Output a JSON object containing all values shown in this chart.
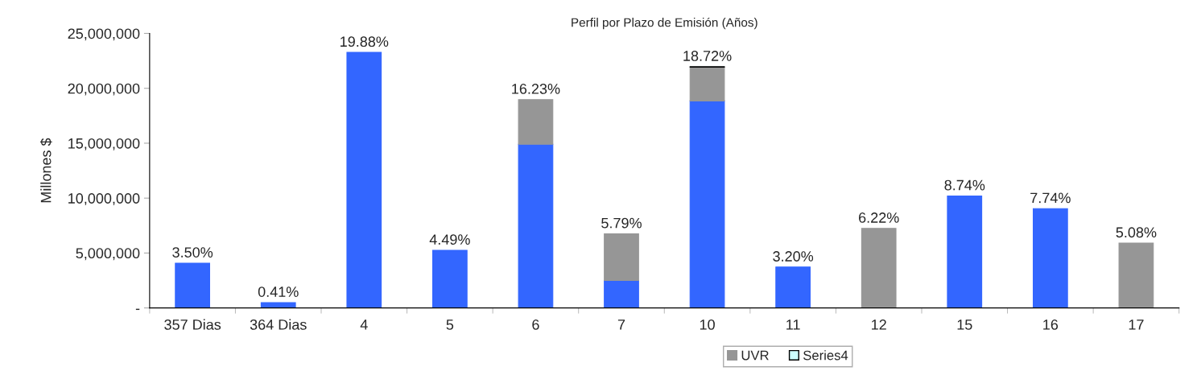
{
  "chart_data": {
    "type": "bar",
    "title": "Perfil por Plazo de Emisión (Años)",
    "ylabel": "Millones $",
    "categories": [
      "357 Dias",
      "364 Dias",
      "4",
      "5",
      "6",
      "7",
      "10",
      "11",
      "12",
      "15",
      "16",
      "17"
    ],
    "stacked": true,
    "series": [
      {
        "color": "#3366ff",
        "values": [
          4080000,
          490000,
          23270000,
          5250000,
          14900000,
          2500000,
          18850000,
          3720000,
          null,
          10200000,
          9040000,
          null
        ]
      },
      {
        "name": "UVR",
        "color": "#969696",
        "values": [
          null,
          null,
          null,
          null,
          4070000,
          4250000,
          3070000,
          null,
          7240000,
          null,
          null,
          5900000
        ]
      },
      {
        "name": "Series4",
        "color": "#ccffff",
        "values": [
          null,
          null,
          null,
          null,
          null,
          null,
          50000,
          null,
          null,
          null,
          null,
          null
        ]
      }
    ],
    "annotations": [
      {
        "text": "3.50%",
        "x": "357 Dias",
        "y": 4080000
      },
      {
        "text": "0.41%",
        "x": "364 Dias",
        "y": 490000
      },
      {
        "text": "19.88%",
        "x": "4",
        "y": 23270000
      },
      {
        "text": "4.49%",
        "x": "5",
        "y": 5250000
      },
      {
        "text": "16.23%",
        "x": "6",
        "y": 18970000
      },
      {
        "text": "5.79%",
        "x": "7",
        "y": 6750000
      },
      {
        "text": "18.72%",
        "x": "10",
        "y": 21970000
      },
      {
        "text": "3.20%",
        "x": "11",
        "y": 3720000
      },
      {
        "text": "6.22%",
        "x": "12",
        "y": 7240000
      },
      {
        "text": "8.74%",
        "x": "15",
        "y": 10200000
      },
      {
        "text": "7.74%",
        "x": "16",
        "y": 9040000
      },
      {
        "text": "5.08%",
        "x": "17",
        "y": 5900000
      }
    ],
    "ylim": [
      0,
      25000000
    ],
    "yticks": [
      {
        "value": 0,
        "label": "-"
      },
      {
        "value": 5000000,
        "label": "5,000,000"
      },
      {
        "value": 10000000,
        "label": "10,000,000"
      },
      {
        "value": 15000000,
        "label": "15,000,000"
      },
      {
        "value": 20000000,
        "label": "20,000,000"
      },
      {
        "value": 25000000,
        "label": "25,000,000"
      }
    ],
    "grid": false,
    "legend": "bottom"
  }
}
